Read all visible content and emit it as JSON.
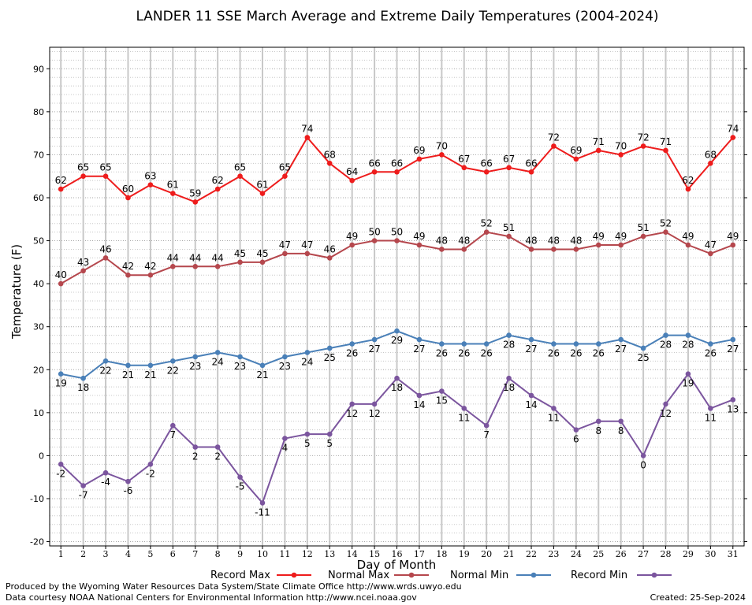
{
  "chart_data": {
    "type": "line",
    "title": "LANDER 11 SSE March Average and Extreme Daily Temperatures (2004-2024)",
    "xlabel": "Day of Month",
    "ylabel": "Temperature (F)",
    "ylim": [
      -21,
      95
    ],
    "yticks": [
      -20,
      -10,
      0,
      10,
      20,
      30,
      40,
      50,
      60,
      70,
      80,
      90
    ],
    "x": [
      1,
      2,
      3,
      4,
      5,
      6,
      7,
      8,
      9,
      10,
      11,
      12,
      13,
      14,
      15,
      16,
      17,
      18,
      19,
      20,
      21,
      22,
      23,
      24,
      25,
      26,
      27,
      28,
      29,
      30,
      31
    ],
    "grid": true,
    "legend_position": "bottom",
    "series": [
      {
        "name": "Record Max",
        "color": "#ee1c1c",
        "label_position": "above",
        "values": [
          62,
          65,
          65,
          60,
          63,
          61,
          59,
          62,
          65,
          61,
          65,
          74,
          68,
          64,
          66,
          66,
          69,
          70,
          67,
          66,
          67,
          66,
          72,
          69,
          71,
          70,
          72,
          71,
          62,
          68,
          74
        ]
      },
      {
        "name": "Normal Max",
        "color": "#b5474d",
        "label_position": "above",
        "values": [
          40,
          43,
          46,
          42,
          42,
          44,
          44,
          44,
          45,
          45,
          47,
          47,
          46,
          49,
          50,
          50,
          49,
          48,
          48,
          52,
          51,
          48,
          48,
          48,
          49,
          49,
          51,
          52,
          49,
          47,
          49
        ]
      },
      {
        "name": "Normal Min",
        "color": "#4a80b8",
        "label_position": "below",
        "values": [
          19,
          18,
          22,
          21,
          21,
          22,
          23,
          24,
          23,
          21,
          23,
          24,
          25,
          26,
          27,
          29,
          27,
          26,
          26,
          26,
          28,
          27,
          26,
          26,
          26,
          27,
          25,
          28,
          28,
          26,
          27
        ]
      },
      {
        "name": "Record Min",
        "color": "#7b559e",
        "label_position": "below",
        "values": [
          -2,
          -7,
          -4,
          -6,
          -2,
          7,
          2,
          2,
          -5,
          -11,
          4,
          5,
          5,
          12,
          12,
          18,
          14,
          15,
          11,
          7,
          18,
          14,
          11,
          6,
          8,
          8,
          0,
          12,
          19,
          11,
          13
        ]
      }
    ]
  },
  "footer": {
    "produced_by": "Produced by the Wyoming Water Resources Data System/State Climate Office http://www.wrds.uwyo.edu",
    "data_courtesy": "Data courtesy NOAA National Centers for Environmental Information http://www.ncei.noaa.gov",
    "created": "Created:  25-Sep-2024"
  }
}
